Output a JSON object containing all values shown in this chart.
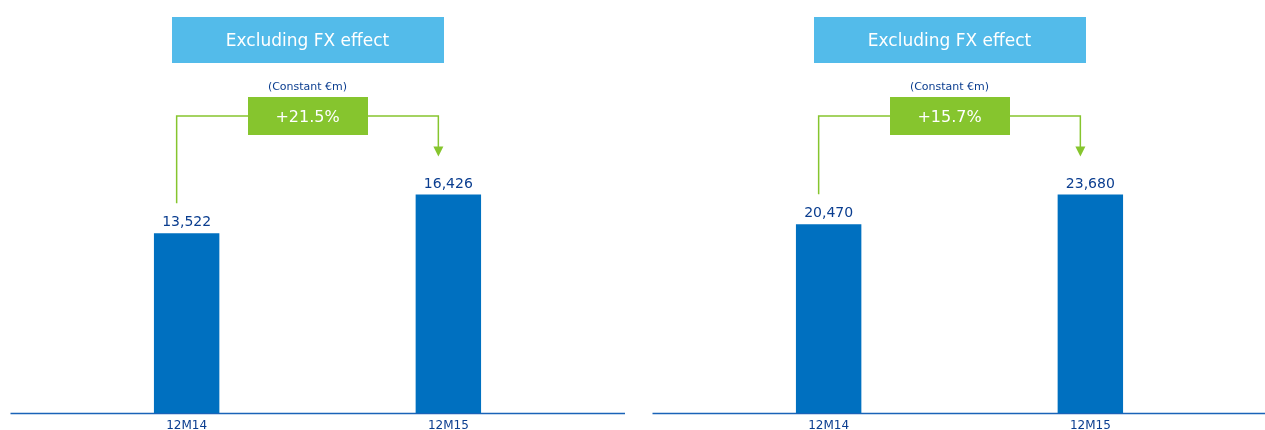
{
  "chart_data": [
    {
      "type": "bar",
      "title": "Excluding FX effect",
      "subtitle": "(Constant €m)",
      "categories": [
        "12M14",
        "12M15"
      ],
      "values": [
        13522,
        16426
      ],
      "value_labels": [
        "13,522",
        "16,426"
      ],
      "color": "#0070c0",
      "annotations": [
        "+21.5%"
      ]
    },
    {
      "type": "bar",
      "title": "Excluding FX effect",
      "subtitle": "(Constant €m)",
      "categories": [
        "12M14",
        "12M15"
      ],
      "values": [
        20470,
        23680
      ],
      "value_labels": [
        "20,470",
        "23,680"
      ],
      "color": "#0070c0",
      "annotations": [
        "+15.7%"
      ]
    }
  ]
}
